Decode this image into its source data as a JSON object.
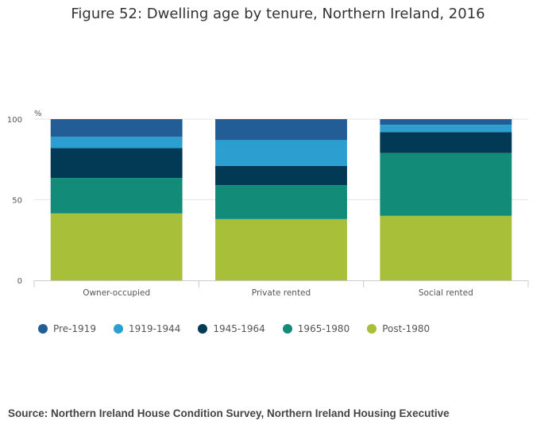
{
  "chart_data": {
    "type": "bar",
    "stacked": true,
    "title": "Figure 52: Dwelling age by tenure, Northern Ireland, 2016",
    "ylabel": "%",
    "xlabel": "",
    "ylim": [
      0,
      100
    ],
    "yticks": [
      0,
      50,
      100
    ],
    "categories": [
      "Owner-occupied",
      "Private rented",
      "Social rented"
    ],
    "series": [
      {
        "name": "Post-1980",
        "color": "#a8bf3a",
        "values": [
          41.5,
          38,
          40
        ]
      },
      {
        "name": "1965-1980",
        "color": "#138b79",
        "values": [
          22,
          21,
          39
        ]
      },
      {
        "name": "1945-1964",
        "color": "#023a56",
        "values": [
          18.5,
          12,
          13
        ]
      },
      {
        "name": "1919-1944",
        "color": "#2b9fd0",
        "values": [
          7,
          16,
          4.5
        ]
      },
      {
        "name": "Pre-1919",
        "color": "#235d95",
        "values": [
          11,
          13,
          3.5
        ]
      }
    ],
    "legend_order": [
      "Pre-1919",
      "1919-1944",
      "1945-1964",
      "1965-1980",
      "Post-1980"
    ],
    "legend_position": "bottom-left"
  },
  "source": "Source: Northern Ireland House Condition Survey, Northern Ireland Housing Executive"
}
